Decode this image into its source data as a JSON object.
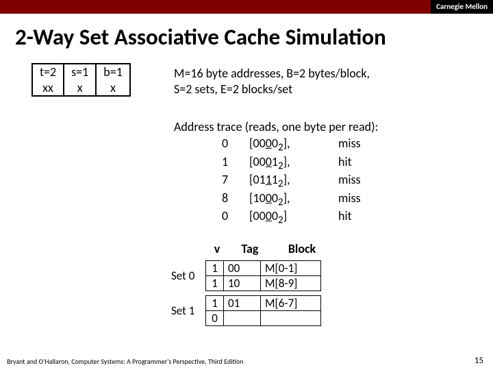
{
  "banner": {
    "label": "Carnegie Mellon",
    "left_color": "#800000",
    "right_bg": "#000000"
  },
  "title": "2-Way Set Associative Cache Simulation",
  "bits": {
    "t_hdr": "t=2",
    "t_val": "xx",
    "s_hdr": "s=1",
    "s_val": "x",
    "b_hdr": "b=1",
    "b_val": "x"
  },
  "params": {
    "line1": "M=16 byte addresses, B=2 bytes/block,",
    "line2": "S=2 sets, E=2 blocks/set"
  },
  "trace": {
    "title": "Address trace (reads, one byte per read):",
    "rows": [
      {
        "addr": "0",
        "pre": "[00",
        "u": "0",
        "post": "0",
        "sub": "2",
        "tail": "],",
        "res": "miss"
      },
      {
        "addr": "1",
        "pre": "[00",
        "u": "0",
        "post": "1",
        "sub": "2",
        "tail": "],",
        "res": "hit"
      },
      {
        "addr": "7",
        "pre": "[01",
        "u": "1",
        "post": "1",
        "sub": "2",
        "tail": "],",
        "res": "miss"
      },
      {
        "addr": "8",
        "pre": "[10",
        "u": "0",
        "post": "0",
        "sub": "2",
        "tail": "],",
        "res": "miss"
      },
      {
        "addr": "0",
        "pre": "[00",
        "u": "0",
        "post": "0",
        "sub": "2",
        "tail": "]",
        "res": "hit"
      }
    ]
  },
  "set_headers": {
    "v": "v",
    "tag": "Tag",
    "block": "Block"
  },
  "sets": [
    {
      "label": "Set 0",
      "lines": [
        {
          "v": "1",
          "tag": "00",
          "block": "M[0-1]"
        },
        {
          "v": "1",
          "tag": "10",
          "block": "M[8-9]"
        }
      ]
    },
    {
      "label": "Set 1",
      "lines": [
        {
          "v": "1",
          "tag": "01",
          "block": "M[6-7]"
        },
        {
          "v": "0",
          "tag": "",
          "block": ""
        }
      ]
    }
  ],
  "footer": "Bryant and O'Hallaron, Computer Systems: A Programmer's Perspective, Third Edition",
  "page": "15"
}
